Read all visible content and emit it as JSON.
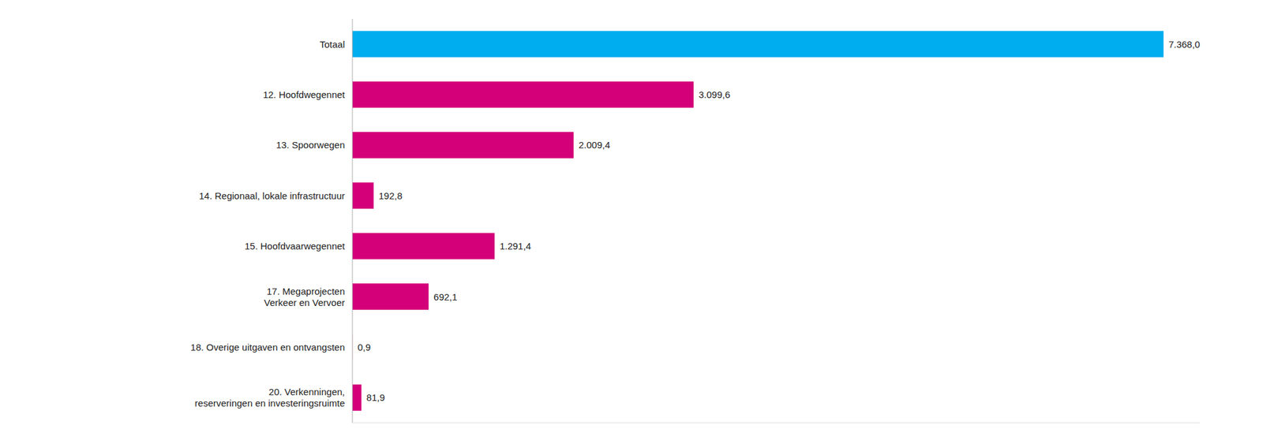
{
  "chart_data": {
    "type": "bar",
    "orientation": "horizontal",
    "categories": [
      "Totaal",
      "12. Hoofdwegennet",
      "13. Spoorwegen",
      "14. Regionaal, lokale infrastructuur",
      "15. Hoofdvaarwegennet",
      "17. Megaprojecten\nVerkeer en Vervoer",
      "18. Overige uitgaven en ontvangsten",
      "20. Verkenningen,\nreserveringen en investeringsruimte"
    ],
    "values": [
      7368.0,
      3099.6,
      2009.4,
      192.8,
      1291.4,
      692.1,
      0.9,
      81.9
    ],
    "value_labels": [
      "7.368,0",
      "3.099,6",
      "2.009,4",
      "192,8",
      "1.291,4",
      "692,1",
      "0,9",
      "81,9"
    ],
    "colors": [
      "#00AEEF",
      "#D4007A",
      "#D4007A",
      "#D4007A",
      "#D4007A",
      "#D4007A",
      "#D4007A",
      "#D4007A"
    ],
    "xlim": [
      0,
      7700
    ],
    "data_labels": true,
    "tick_labels": "y"
  }
}
